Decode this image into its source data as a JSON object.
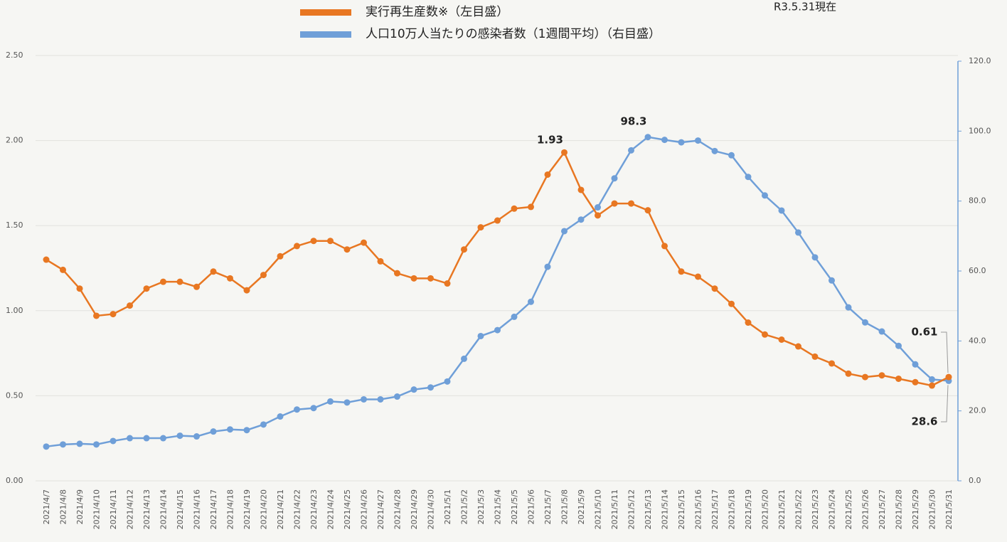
{
  "chart_data": {
    "type": "line",
    "note": "R3.5.31現在",
    "categories": [
      "2021/4/7",
      "2021/4/8",
      "2021/4/9",
      "2021/4/10",
      "2021/4/11",
      "2021/4/12",
      "2021/4/13",
      "2021/4/14",
      "2021/4/15",
      "2021/4/16",
      "2021/4/17",
      "2021/4/18",
      "2021/4/19",
      "2021/4/20",
      "2021/4/21",
      "2021/4/22",
      "2021/4/23",
      "2021/4/24",
      "2021/4/25",
      "2021/4/26",
      "2021/4/27",
      "2021/4/28",
      "2021/4/29",
      "2021/4/30",
      "2021/5/1",
      "2021/5/2",
      "2021/5/3",
      "2021/5/4",
      "2021/5/5",
      "2021/5/6",
      "2021/5/7",
      "2021/5/8",
      "2021/5/9",
      "2021/5/10",
      "2021/5/11",
      "2021/5/12",
      "2021/5/13",
      "2021/5/14",
      "2021/5/15",
      "2021/5/16",
      "2021/5/17",
      "2021/5/18",
      "2021/5/19",
      "2021/5/20",
      "2021/5/21",
      "2021/5/22",
      "2021/5/23",
      "2021/5/24",
      "2021/5/25",
      "2021/5/26",
      "2021/5/27",
      "2021/5/28",
      "2021/5/29",
      "2021/5/30",
      "2021/5/31"
    ],
    "series": [
      {
        "name": "実行再生産数※（左目盛）",
        "color": "#e87722",
        "axis": "y",
        "values": [
          1.3,
          1.24,
          1.13,
          0.97,
          0.98,
          1.03,
          1.13,
          1.17,
          1.17,
          1.14,
          1.23,
          1.19,
          1.12,
          1.21,
          1.32,
          1.38,
          1.41,
          1.41,
          1.36,
          1.4,
          1.29,
          1.22,
          1.19,
          1.19,
          1.16,
          1.36,
          1.49,
          1.53,
          1.6,
          1.61,
          1.8,
          1.93,
          1.71,
          1.56,
          1.63,
          1.63,
          1.59,
          1.38,
          1.23,
          1.2,
          1.13,
          1.04,
          0.93,
          0.86,
          0.83,
          0.79,
          0.73,
          0.69,
          0.63,
          0.61,
          0.62,
          0.6,
          0.58,
          0.56,
          0.61
        ]
      },
      {
        "name": "人口10万人当たりの感染者数（1週間平均）（右目盛）",
        "color": "#6f9fd8",
        "axis": "y2",
        "values": [
          9.8,
          10.4,
          10.6,
          10.4,
          11.4,
          12.2,
          12.2,
          12.2,
          12.9,
          12.7,
          14.1,
          14.7,
          14.5,
          16.1,
          18.4,
          20.4,
          20.8,
          22.7,
          22.4,
          23.3,
          23.3,
          24.1,
          26.1,
          26.7,
          28.4,
          34.9,
          41.4,
          43.1,
          46.9,
          51.2,
          61.2,
          71.4,
          74.7,
          78.2,
          86.5,
          94.5,
          98.3,
          97.5,
          96.8,
          97.3,
          94.3,
          93.1,
          86.9,
          81.6,
          77.3,
          71.0,
          63.9,
          57.3,
          49.6,
          45.3,
          42.7,
          38.6,
          33.3,
          29.0,
          28.6
        ]
      }
    ],
    "ylim": [
      0,
      2.5
    ],
    "yticks": [
      {
        "value": 0,
        "label": "0.00"
      },
      {
        "value": 0.5,
        "label": "0.50"
      },
      {
        "value": 1,
        "label": "1.00"
      },
      {
        "value": 1.5,
        "label": "1.50"
      },
      {
        "value": 2,
        "label": "2.00"
      },
      {
        "value": 2.5,
        "label": "2.50"
      }
    ],
    "y2lim": [
      0,
      120
    ],
    "y2ticks": [
      {
        "value": 0,
        "label": "0.0"
      },
      {
        "value": 20,
        "label": "20.0"
      },
      {
        "value": 40,
        "label": "40.0"
      },
      {
        "value": 60,
        "label": "60.0"
      },
      {
        "value": 80,
        "label": "80.0"
      },
      {
        "value": 100,
        "label": "100.0"
      },
      {
        "value": 120,
        "label": "120.0"
      }
    ],
    "grid": true
  }
}
